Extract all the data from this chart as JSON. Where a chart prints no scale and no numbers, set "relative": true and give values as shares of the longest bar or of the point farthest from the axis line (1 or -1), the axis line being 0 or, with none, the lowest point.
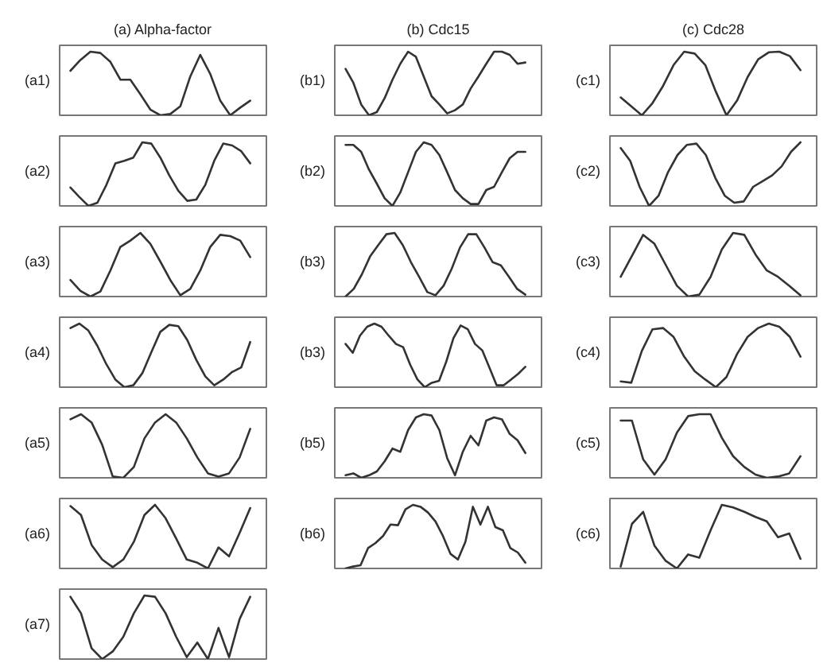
{
  "chart_data": [
    {
      "type": "line",
      "title": "(a) Alpha-factor",
      "ylabel": "(a1)",
      "relative": true,
      "color": "#333333",
      "categories": [
        null,
        null,
        null,
        null,
        null,
        null,
        null,
        null,
        null,
        null,
        null,
        null,
        null,
        null,
        null,
        null,
        null,
        null,
        null
      ],
      "values": [
        0.7,
        0.87,
        1.0,
        0.98,
        0.84,
        0.56,
        0.56,
        0.33,
        0.09,
        0,
        0.02,
        0.14,
        0.61,
        0.95,
        0.65,
        0.23,
        0,
        0.12,
        0.23
      ]
    },
    {
      "type": "line",
      "title": "(b) Cdc15",
      "ylabel": "(b1)",
      "relative": true,
      "color": "#333333",
      "categories": [
        null,
        null,
        null,
        null,
        null,
        null,
        null,
        null,
        null,
        null,
        null,
        null,
        null,
        null,
        null,
        null,
        null,
        null,
        null,
        null,
        null,
        null,
        null,
        null
      ],
      "values": [
        0.73,
        0.51,
        0.17,
        0,
        0.05,
        0.27,
        0.56,
        0.81,
        1.0,
        0.92,
        0.61,
        0.3,
        0.17,
        0.03,
        0.08,
        0.17,
        0.42,
        0.61,
        0.81,
        1.0,
        1.0,
        0.95,
        0.81,
        0.83
      ]
    },
    {
      "type": "line",
      "title": "(c) Cdc28",
      "ylabel": "(c1)",
      "relative": true,
      "color": "#333333",
      "categories": [
        null,
        null,
        null,
        null,
        null,
        null,
        null,
        null,
        null,
        null,
        null,
        null,
        null,
        null,
        null,
        null,
        null,
        null
      ],
      "values": [
        0.28,
        0.14,
        0,
        0.19,
        0.46,
        0.79,
        1.0,
        0.97,
        0.79,
        0.37,
        0,
        0.23,
        0.6,
        0.88,
        0.99,
        1.0,
        0.93,
        0.71
      ]
    },
    {
      "type": "line",
      "ylabel": "(a2)",
      "relative": true,
      "color": "#333333",
      "categories": [
        null,
        null,
        null,
        null,
        null,
        null,
        null,
        null,
        null,
        null,
        null,
        null,
        null,
        null,
        null,
        null,
        null,
        null,
        null,
        null,
        null
      ],
      "values": [
        0.29,
        0.14,
        0,
        0.05,
        0.33,
        0.67,
        0.71,
        0.76,
        1.0,
        0.98,
        0.76,
        0.48,
        0.24,
        0.08,
        0.1,
        0.33,
        0.71,
        0.98,
        0.95,
        0.86,
        0.67
      ]
    },
    {
      "type": "line",
      "ylabel": "(b2)",
      "relative": true,
      "color": "#333333",
      "categories": [
        null,
        null,
        null,
        null,
        null,
        null,
        null,
        null,
        null,
        null,
        null,
        null,
        null,
        null,
        null,
        null,
        null,
        null,
        null,
        null,
        null,
        null,
        null,
        null
      ],
      "values": [
        0.96,
        0.96,
        0.85,
        0.57,
        0.35,
        0.12,
        0,
        0.21,
        0.53,
        0.85,
        1.0,
        0.96,
        0.8,
        0.53,
        0.25,
        0.12,
        0.03,
        0.03,
        0.25,
        0.3,
        0.53,
        0.75,
        0.85,
        0.85
      ]
    },
    {
      "type": "line",
      "ylabel": "(c2)",
      "relative": true,
      "color": "#333333",
      "categories": [
        null,
        null,
        null,
        null,
        null,
        null,
        null,
        null,
        null,
        null,
        null,
        null,
        null,
        null,
        null,
        null,
        null,
        null,
        null,
        null
      ],
      "values": [
        0.91,
        0.71,
        0.3,
        0,
        0.16,
        0.53,
        0.8,
        0.96,
        0.98,
        0.8,
        0.44,
        0.16,
        0.05,
        0.07,
        0.3,
        0.39,
        0.48,
        0.62,
        0.85,
        1.0
      ]
    },
    {
      "type": "line",
      "ylabel": "(a3)",
      "relative": true,
      "color": "#333333",
      "categories": [
        null,
        null,
        null,
        null,
        null,
        null,
        null,
        null,
        null,
        null,
        null,
        null,
        null,
        null,
        null,
        null,
        null,
        null,
        null
      ],
      "values": [
        0.26,
        0.09,
        0,
        0.08,
        0.41,
        0.78,
        0.88,
        1.0,
        0.83,
        0.55,
        0.26,
        0.02,
        0.12,
        0.41,
        0.78,
        0.97,
        0.95,
        0.88,
        0.62
      ]
    },
    {
      "type": "line",
      "ylabel": "(b3)",
      "relative": true,
      "color": "#333333",
      "categories": [
        null,
        null,
        null,
        null,
        null,
        null,
        null,
        null,
        null,
        null,
        null,
        null,
        null,
        null,
        null,
        null,
        null,
        null,
        null,
        null,
        null,
        null,
        null
      ],
      "values": [
        0,
        0.12,
        0.35,
        0.63,
        0.81,
        0.98,
        1.0,
        0.81,
        0.54,
        0.31,
        0.07,
        0.02,
        0.17,
        0.44,
        0.77,
        0.98,
        0.98,
        0.77,
        0.54,
        0.49,
        0.31,
        0.12,
        0.03
      ]
    },
    {
      "type": "line",
      "ylabel": "(c3)",
      "relative": true,
      "color": "#333333",
      "categories": [
        null,
        null,
        null,
        null,
        null,
        null,
        null,
        null,
        null,
        null,
        null,
        null,
        null,
        null,
        null,
        null,
        null
      ],
      "values": [
        0.31,
        0.64,
        0.97,
        0.83,
        0.5,
        0.17,
        0,
        0.03,
        0.31,
        0.74,
        1.0,
        0.97,
        0.66,
        0.41,
        0.31,
        0.17,
        0.02
      ]
    },
    {
      "type": "line",
      "ylabel": "(a4)",
      "relative": true,
      "color": "#333333",
      "categories": [
        null,
        null,
        null,
        null,
        null,
        null,
        null,
        null,
        null,
        null,
        null,
        null,
        null,
        null,
        null,
        null,
        null,
        null,
        null,
        null,
        null
      ],
      "values": [
        0.93,
        1.0,
        0.89,
        0.65,
        0.36,
        0.12,
        0,
        0.03,
        0.22,
        0.55,
        0.87,
        0.98,
        0.96,
        0.74,
        0.43,
        0.17,
        0.03,
        0.12,
        0.24,
        0.31,
        0.71
      ]
    },
    {
      "type": "line",
      "ylabel": "(b3)",
      "relative": true,
      "color": "#333333",
      "categories": [
        null,
        null,
        null,
        null,
        null,
        null,
        null,
        null,
        null,
        null,
        null,
        null,
        null,
        null,
        null,
        null,
        null,
        null,
        null,
        null,
        null,
        null,
        null,
        null,
        null,
        null
      ],
      "values": [
        0.68,
        0.54,
        0.81,
        0.95,
        1.0,
        0.95,
        0.81,
        0.68,
        0.63,
        0.35,
        0.12,
        0,
        0.07,
        0.1,
        0.4,
        0.77,
        0.97,
        0.91,
        0.68,
        0.58,
        0.31,
        0.03,
        0.03,
        0.12,
        0.21,
        0.32
      ]
    },
    {
      "type": "line",
      "ylabel": "(c4)",
      "relative": true,
      "color": "#333333",
      "categories": [
        null,
        null,
        null,
        null,
        null,
        null,
        null,
        null,
        null,
        null,
        null,
        null,
        null,
        null,
        null,
        null,
        null,
        null
      ],
      "values": [
        0.09,
        0.07,
        0.57,
        0.91,
        0.93,
        0.79,
        0.48,
        0.25,
        0.12,
        0,
        0.16,
        0.52,
        0.79,
        0.93,
        1.0,
        0.95,
        0.79,
        0.48
      ]
    },
    {
      "type": "line",
      "ylabel": "(a5)",
      "relative": true,
      "color": "#333333",
      "categories": [
        null,
        null,
        null,
        null,
        null,
        null,
        null,
        null,
        null,
        null,
        null,
        null,
        null,
        null,
        null,
        null,
        null,
        null
      ],
      "values": [
        0.92,
        1.0,
        0.87,
        0.52,
        0.02,
        0,
        0.17,
        0.62,
        0.87,
        1.0,
        0.87,
        0.62,
        0.32,
        0.07,
        0.02,
        0.07,
        0.32,
        0.77
      ]
    },
    {
      "type": "line",
      "ylabel": "(b5)",
      "relative": true,
      "color": "#333333",
      "categories": [
        null,
        null,
        null,
        null,
        null,
        null,
        null,
        null,
        null,
        null,
        null,
        null,
        null,
        null,
        null,
        null,
        null,
        null,
        null,
        null,
        null,
        null,
        null,
        null
      ],
      "values": [
        0.04,
        0.07,
        0,
        0.04,
        0.1,
        0.26,
        0.46,
        0.41,
        0.75,
        0.95,
        1.0,
        0.98,
        0.75,
        0.31,
        0.04,
        0.41,
        0.66,
        0.51,
        0.9,
        0.95,
        0.92,
        0.69,
        0.59,
        0.39
      ]
    },
    {
      "type": "line",
      "ylabel": "(c5)",
      "relative": true,
      "color": "#333333",
      "categories": [
        null,
        null,
        null,
        null,
        null,
        null,
        null,
        null,
        null,
        null,
        null,
        null,
        null,
        null,
        null,
        null,
        null
      ],
      "values": [
        0.9,
        0.9,
        0.29,
        0.05,
        0.29,
        0.71,
        0.97,
        1.0,
        1.0,
        0.63,
        0.34,
        0.17,
        0.05,
        0,
        0.02,
        0.07,
        0.34
      ]
    },
    {
      "type": "line",
      "ylabel": "(a6)",
      "relative": true,
      "color": "#333333",
      "categories": [
        null,
        null,
        null,
        null,
        null,
        null,
        null,
        null,
        null,
        null,
        null,
        null,
        null,
        null,
        null,
        null,
        null,
        null
      ],
      "values": [
        0.98,
        0.84,
        0.37,
        0.14,
        0.02,
        0.14,
        0.42,
        0.84,
        1.0,
        0.79,
        0.47,
        0.14,
        0.09,
        0,
        0.33,
        0.19,
        0.56,
        0.95
      ]
    },
    {
      "type": "line",
      "ylabel": "(b6)",
      "relative": true,
      "color": "#333333",
      "categories": [
        null,
        null,
        null,
        null,
        null,
        null,
        null,
        null,
        null,
        null,
        null,
        null,
        null,
        null,
        null,
        null,
        null,
        null,
        null,
        null,
        null,
        null,
        null,
        null,
        null
      ],
      "values": [
        0,
        0.03,
        0.05,
        0.32,
        0.4,
        0.51,
        0.69,
        0.68,
        0.93,
        1.0,
        0.97,
        0.88,
        0.74,
        0.51,
        0.23,
        0.14,
        0.42,
        0.97,
        0.69,
        0.97,
        0.65,
        0.6,
        0.32,
        0.25,
        0.09
      ]
    },
    {
      "type": "line",
      "ylabel": "(c6)",
      "relative": true,
      "color": "#333333",
      "categories": [
        null,
        null,
        null,
        null,
        null,
        null,
        null,
        null,
        null,
        null,
        null,
        null,
        null,
        null,
        null,
        null,
        null
      ],
      "values": [
        0.03,
        0.7,
        0.89,
        0.36,
        0.12,
        0,
        0.22,
        0.17,
        0.6,
        1.0,
        0.96,
        0.89,
        0.81,
        0.74,
        0.49,
        0.55,
        0.15
      ]
    },
    {
      "type": "line",
      "ylabel": "(a7)",
      "relative": true,
      "color": "#333333",
      "categories": [
        null,
        null,
        null,
        null,
        null,
        null,
        null,
        null,
        null,
        null,
        null,
        null,
        null,
        null,
        null,
        null,
        null,
        null
      ],
      "values": [
        0.98,
        0.72,
        0.17,
        0,
        0.12,
        0.35,
        0.72,
        1.0,
        0.98,
        0.72,
        0.35,
        0.03,
        0.26,
        0,
        0.49,
        0.03,
        0.63,
        0.98
      ]
    }
  ]
}
